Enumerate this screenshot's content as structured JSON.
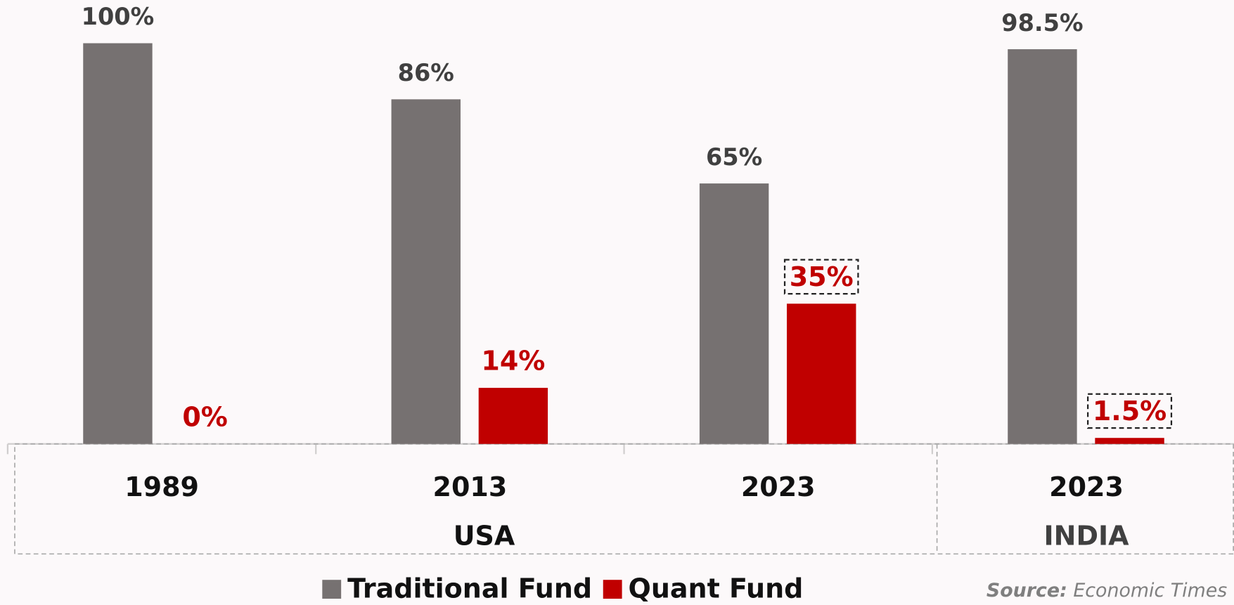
{
  "chart_data": {
    "type": "bar",
    "categories": [
      "1989",
      "2013",
      "2023",
      "2023"
    ],
    "groups": [
      {
        "name": "USA",
        "span": 3
      },
      {
        "name": "INDIA",
        "span": 1
      }
    ],
    "ylim": [
      0,
      100
    ],
    "series": [
      {
        "name": "Traditional Fund",
        "color": "#767171",
        "label_color": "#404040",
        "values": [
          100,
          86,
          65,
          98.5
        ],
        "value_labels": [
          "100%",
          "86%",
          "65%",
          "98.5%"
        ],
        "boxed": [
          false,
          false,
          false,
          false
        ]
      },
      {
        "name": "Quant Fund",
        "color": "#c00000",
        "label_color": "#c00000",
        "values": [
          0,
          14,
          35,
          1.5
        ],
        "value_labels": [
          "0%",
          "14%",
          "35%",
          "1.5%"
        ],
        "boxed": [
          false,
          false,
          true,
          true
        ]
      }
    ],
    "source": {
      "label": "Source:",
      "text": "Economic Times"
    }
  }
}
